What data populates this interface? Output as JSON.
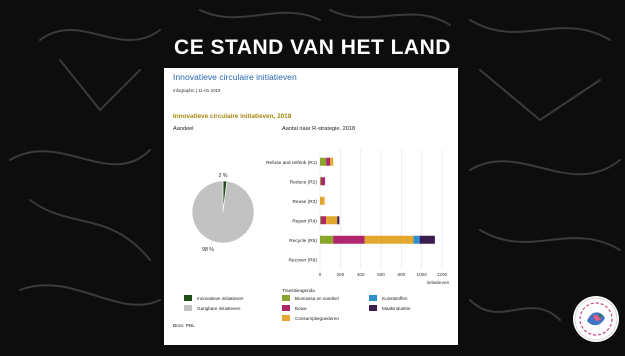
{
  "slide": {
    "title": "CE STAND VAN HET LAND"
  },
  "card": {
    "heading": "Innovatieve circulaire initiatieven",
    "meta": "Infographic | 11-01-2019",
    "infographic_title": "Innovatieve circulaire initiatieven, 2018",
    "share_label": "Aandeel",
    "bar_label": "Aantal naar R-strategie, 2018",
    "source": "Bron: PBL"
  },
  "colors": {
    "innovatief": "#1e4d1a",
    "gangbaar": "#c2c2c2",
    "biomassa": "#8aa62a",
    "bouw": "#b0266d",
    "consumptiegoederen": "#e3a72f",
    "kunststoffen": "#2e8fd1",
    "maakindustrie": "#3a1c4f",
    "title_text": "#a2870e",
    "heading_text": "#2a66b2"
  },
  "chart_data": [
    {
      "type": "pie",
      "slices": [
        {
          "label": "Innovatieve initiatieven",
          "value": 2,
          "display": "2 %"
        },
        {
          "label": "Gangbare initiatieven",
          "value": 98,
          "display": "98 %"
        }
      ]
    },
    {
      "type": "bar",
      "orientation": "horizontal",
      "stacked": true,
      "categories": [
        "Refuse and rethink (R1)",
        "Reduce (R2)",
        "Reuse (R3)",
        "Repair (R4)",
        "Recycle (R5)",
        "Recover (R6)"
      ],
      "xlabel": "initiatieven",
      "xlim": [
        0,
        1200
      ],
      "xticks": [
        0,
        200,
        400,
        600,
        800,
        1000,
        1200
      ],
      "legend_title": "Transitieagenda",
      "series": [
        {
          "name": "Biomassa en voedsel",
          "values": [
            60,
            10,
            0,
            10,
            130,
            0
          ]
        },
        {
          "name": "Bouw",
          "values": [
            40,
            40,
            0,
            50,
            310,
            0
          ]
        },
        {
          "name": "Consumptiegoederen",
          "values": [
            30,
            0,
            45,
            110,
            480,
            0
          ]
        },
        {
          "name": "Kunststoffen",
          "values": [
            0,
            0,
            0,
            0,
            60,
            0
          ]
        },
        {
          "name": "Maakindustrie",
          "values": [
            0,
            0,
            0,
            20,
            150,
            0
          ]
        }
      ]
    }
  ]
}
